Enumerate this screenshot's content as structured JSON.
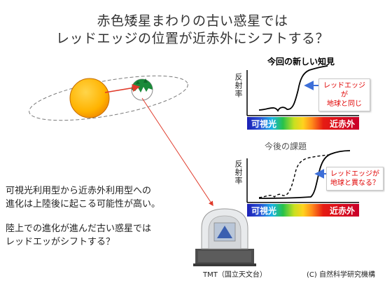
{
  "title": {
    "line1": "赤色矮星まわりの古い惑星では",
    "line2": "レッドエッジの位置が近赤外にシフトする？"
  },
  "panel_top": {
    "title": "今回の新しい知見",
    "ylabel": "反射率",
    "spectrum_left": "可視光",
    "spectrum_right": "近赤外",
    "callout": [
      "レッドエッジが",
      "地球と同じ"
    ]
  },
  "panel_bottom": {
    "title": "今後の課題",
    "ylabel": "反射率",
    "spectrum_left": "可視光",
    "spectrum_right": "近赤外",
    "callout": [
      "レッドエッジが",
      "地球と異なる？"
    ]
  },
  "body": {
    "para1_line1": "可視光利用型から近赤外利用型への",
    "para1_line2": "進化は上陸後に起こる可能性が高い。",
    "para2_line1": "陸上での進化が進んだ古い惑星では",
    "para2_line2": "レッドエッがシフトする？"
  },
  "telescope_caption": "TMT（国立天文台）",
  "credit": "(C) 自然科学研究機構",
  "colors": {
    "star": "#ffb300",
    "planet_land": "#1a8a3a",
    "arrow": "#e03a2a",
    "callout_text": "#e00000"
  }
}
